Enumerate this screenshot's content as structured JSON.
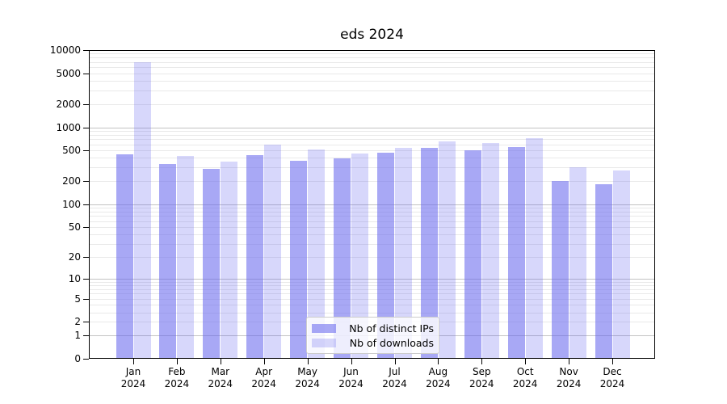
{
  "chart_data": {
    "type": "bar",
    "title": "eds 2024",
    "categories": [
      "Jan",
      "Feb",
      "Mar",
      "Apr",
      "May",
      "Jun",
      "Jul",
      "Aug",
      "Sep",
      "Oct",
      "Nov",
      "Dec"
    ],
    "tick_year": "2024",
    "series": [
      {
        "name": "Nb of distinct IPs",
        "slug": "distinct-ips",
        "color": "rgba(102,102,238,0.57)",
        "values": [
          445,
          330,
          285,
          440,
          370,
          395,
          470,
          535,
          500,
          555,
          200,
          182
        ]
      },
      {
        "name": "Nb of downloads",
        "slug": "downloads",
        "color": "rgba(102,102,238,0.26)",
        "values": [
          6900,
          420,
          360,
          595,
          520,
          455,
          540,
          650,
          620,
          730,
          305,
          275
        ]
      }
    ],
    "yscale": "log1p",
    "ylim": [
      0,
      10000
    ],
    "yticks": [
      0,
      1,
      2,
      5,
      10,
      20,
      50,
      100,
      200,
      500,
      1000,
      2000,
      5000,
      10000
    ],
    "grid": {
      "minor_color": "#e9e9e9",
      "major_color": "#c3c3c3",
      "major_at": [
        1,
        10,
        100,
        1000
      ]
    },
    "legend_position": "lower center",
    "spine_color": "#000000"
  }
}
